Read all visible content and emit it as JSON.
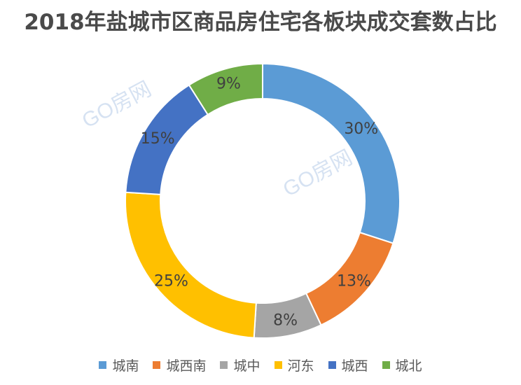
{
  "chart_data": {
    "type": "pie",
    "subtype": "donut",
    "title": "2018年盐城市区商品房住宅各板块成交套数占比",
    "unit": "%",
    "categories": [
      "城南",
      "城西南",
      "城中",
      "河东",
      "城西",
      "城北"
    ],
    "values": [
      30,
      13,
      8,
      25,
      15,
      9
    ],
    "labels": [
      "30%",
      "13%",
      "8%",
      "25%",
      "15%",
      "9%"
    ],
    "colors": [
      "#5B9BD5",
      "#ED7D31",
      "#A5A5A5",
      "#FFC000",
      "#4472C4",
      "#70AD47"
    ],
    "legend_position": "bottom"
  },
  "watermark": {
    "text": "GO房网"
  }
}
